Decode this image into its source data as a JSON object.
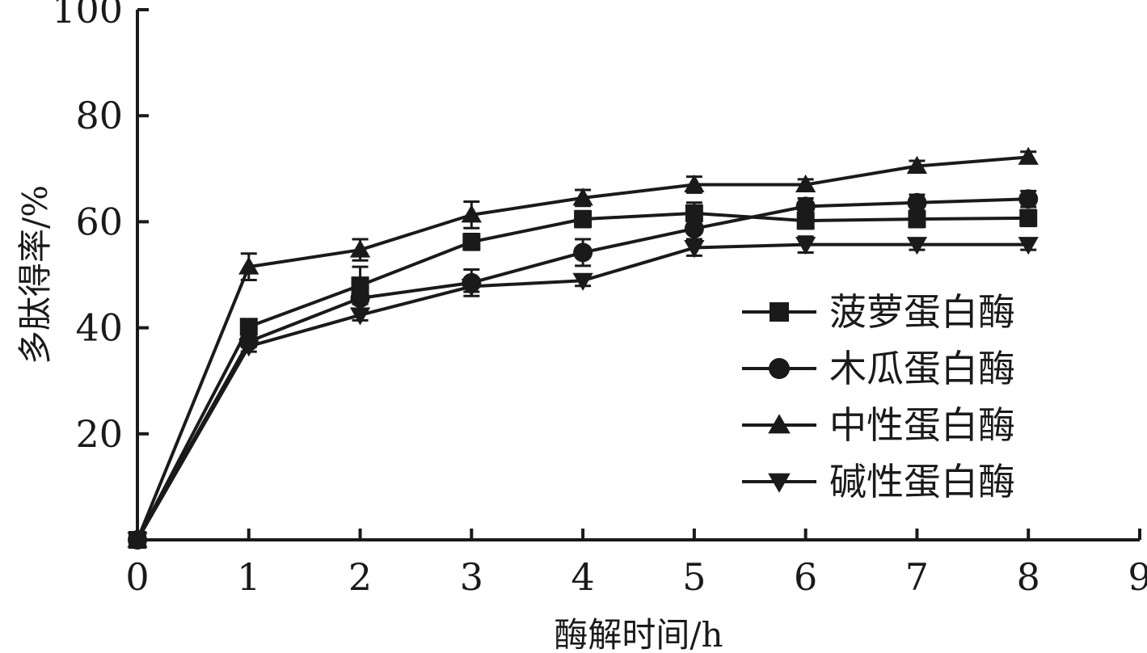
{
  "chart_data": {
    "type": "line",
    "title": "",
    "xlabel": "酶解时间/h",
    "ylabel": "多肽得率/%",
    "xlim": [
      0,
      9
    ],
    "ylim": [
      0,
      100
    ],
    "x_ticks": [
      "0",
      "1",
      "2",
      "3",
      "4",
      "5",
      "6",
      "7",
      "8",
      "9"
    ],
    "y_ticks": [
      "20",
      "40",
      "60",
      "80",
      "100"
    ],
    "grid": false,
    "legend_position": "center-right",
    "x": [
      0,
      1,
      2,
      3,
      4,
      5,
      6,
      7,
      8
    ],
    "series": [
      {
        "name": "菠萝蛋白酶",
        "marker": "square",
        "values": [
          0,
          40.2,
          48.0,
          56.2,
          60.5,
          61.6,
          60.2,
          60.5,
          60.7
        ],
        "errors": [
          0,
          1.2,
          3.5,
          1.5,
          1.5,
          2.0,
          1.5,
          1.5,
          1.5
        ]
      },
      {
        "name": "木瓜蛋白酶",
        "marker": "circle",
        "values": [
          0,
          37.4,
          45.6,
          48.5,
          54.2,
          58.7,
          62.9,
          63.6,
          64.3
        ],
        "errors": [
          0,
          1.0,
          2.0,
          2.5,
          2.5,
          2.0,
          1.5,
          1.5,
          1.5
        ]
      },
      {
        "name": "中性蛋白酶",
        "marker": "triangle-up",
        "values": [
          0,
          51.5,
          54.7,
          61.3,
          64.5,
          67.0,
          67.0,
          70.5,
          72.2
        ],
        "errors": [
          0,
          2.5,
          2.0,
          2.5,
          1.5,
          1.5,
          1.0,
          1.0,
          1.0
        ]
      },
      {
        "name": "碱性蛋白酶",
        "marker": "triangle-down",
        "values": [
          0,
          36.5,
          42.4,
          47.8,
          48.9,
          55.1,
          55.7,
          55.7,
          55.7
        ],
        "errors": [
          0,
          1.0,
          1.0,
          1.0,
          1.0,
          1.5,
          1.5,
          1.0,
          1.0
        ]
      }
    ]
  }
}
